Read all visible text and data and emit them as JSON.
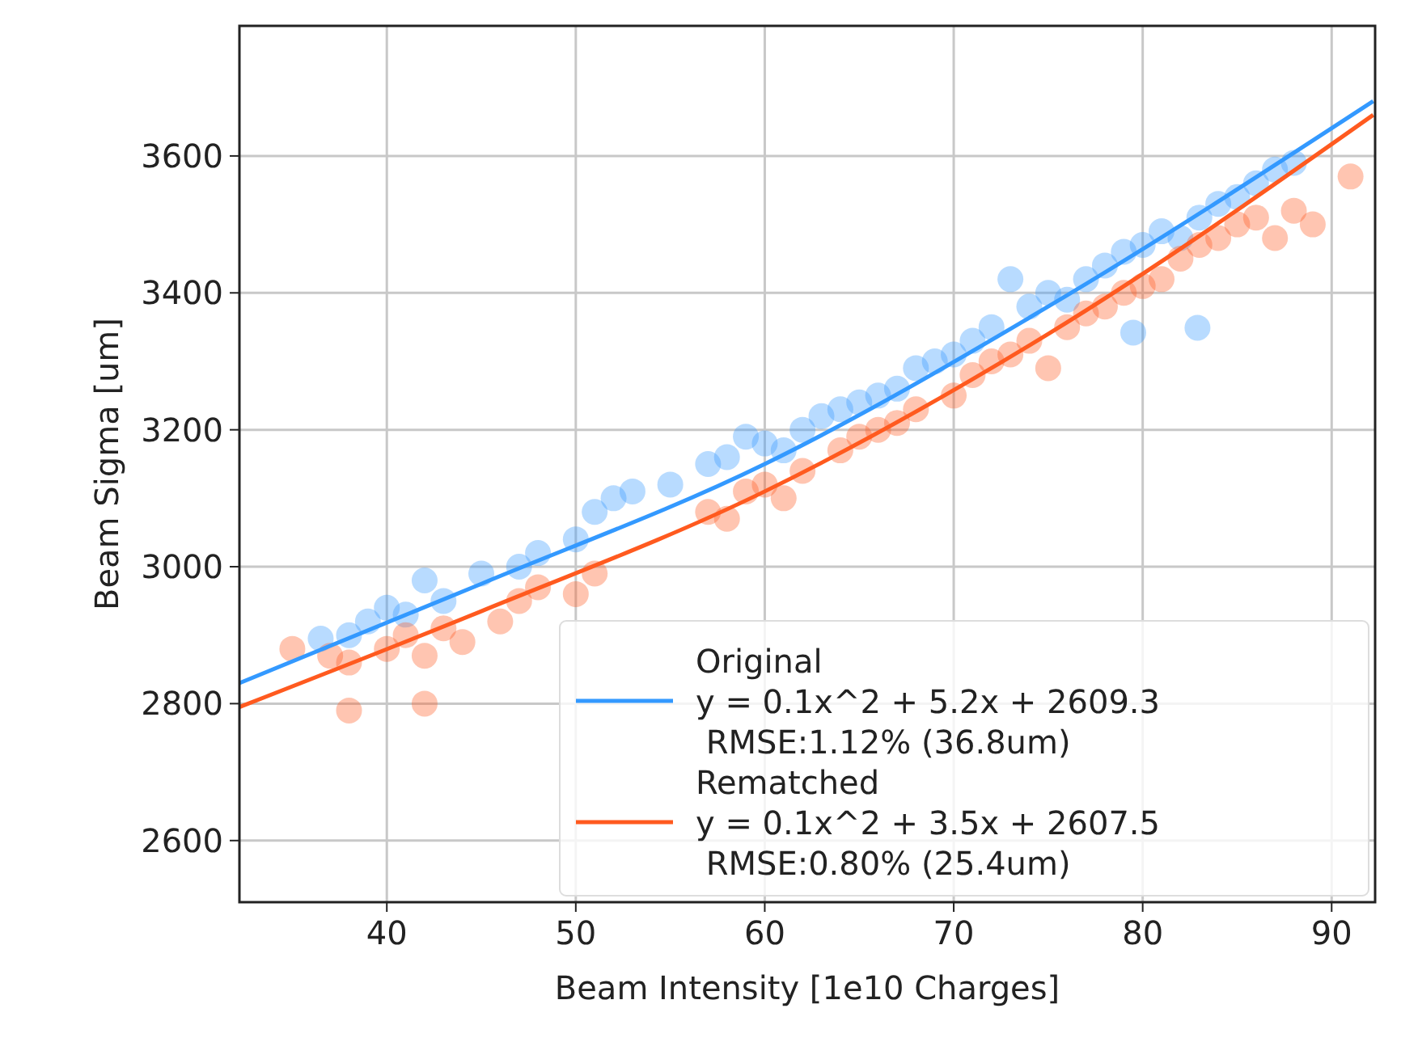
{
  "chart_data": {
    "type": "scatter",
    "xlabel": "Beam Intensity [1e10 Charges]",
    "ylabel": "Beam Sigma [um]",
    "xlim": [
      32.2,
      92.3
    ],
    "ylim": [
      2510,
      3790
    ],
    "xticks": [
      40,
      50,
      60,
      70,
      80,
      90
    ],
    "yticks": [
      2600,
      2800,
      3000,
      3200,
      3400,
      3600
    ],
    "grid": true,
    "legend": "bottom right",
    "marker": "circle",
    "series": [
      {
        "color": "#3399ff",
        "x": [
          36.5,
          38,
          39,
          40,
          41,
          42,
          43,
          45,
          47,
          48,
          50,
          51,
          52,
          53,
          55,
          57,
          58,
          59,
          60,
          61,
          62,
          63,
          64,
          65,
          66,
          67,
          68,
          69,
          70,
          71,
          72,
          73,
          74,
          75,
          76,
          77,
          78,
          79,
          80,
          81,
          82,
          83,
          84,
          85,
          86,
          87,
          88,
          79.5,
          82.9
        ],
        "values": [
          2895,
          2900,
          2920,
          2940,
          2930,
          2980,
          2950,
          2990,
          3000,
          3020,
          3040,
          3080,
          3100,
          3110,
          3120,
          3150,
          3160,
          3190,
          3180,
          3170,
          3200,
          3220,
          3230,
          3240,
          3250,
          3260,
          3290,
          3300,
          3310,
          3330,
          3350,
          3420,
          3380,
          3400,
          3390,
          3420,
          3440,
          3460,
          3470,
          3490,
          3480,
          3510,
          3530,
          3540,
          3560,
          3580,
          3590,
          3342,
          3349
        ]
      },
      {
        "color": "#ff5a1f",
        "x": [
          35,
          37,
          38,
          38,
          40,
          41,
          42,
          42,
          43,
          44,
          46,
          47,
          48,
          50,
          51,
          57,
          58,
          59,
          60,
          61,
          62,
          64,
          65,
          66,
          67,
          68,
          70,
          71,
          72,
          73,
          74,
          75,
          76,
          77,
          78,
          79,
          80,
          81,
          82,
          83,
          84,
          85,
          86,
          87,
          88,
          89,
          91
        ],
        "values": [
          2880,
          2870,
          2790,
          2860,
          2880,
          2900,
          2800,
          2870,
          2910,
          2890,
          2920,
          2950,
          2970,
          2960,
          2990,
          3080,
          3070,
          3110,
          3120,
          3100,
          3140,
          3170,
          3190,
          3200,
          3210,
          3230,
          3250,
          3280,
          3300,
          3310,
          3330,
          3290,
          3350,
          3370,
          3380,
          3400,
          3410,
          3420,
          3450,
          3470,
          3480,
          3500,
          3510,
          3480,
          3520,
          3500,
          3570
        ]
      },
      {
        "type": "line",
        "name": "Original\ny = 0.1x^2 + 5.2x + 2609.3\n RMSE:1.12% (36.8um)",
        "color": "#3399ff",
        "marker": "none",
        "x": [
          32.2,
          45,
          60,
          75,
          92.2
        ],
        "values": [
          2830,
          2975,
          3150,
          3380,
          3680
        ]
      },
      {
        "type": "line",
        "name": "Rematched\ny = 0.1x^2 + 3.5x + 2607.5\n RMSE:0.80% (25.4um)",
        "color": "#ff5a1f",
        "marker": "none",
        "x": [
          32.2,
          45,
          60,
          75,
          92.2
        ],
        "values": [
          2795,
          2935,
          3110,
          3340,
          3660
        ]
      }
    ]
  }
}
